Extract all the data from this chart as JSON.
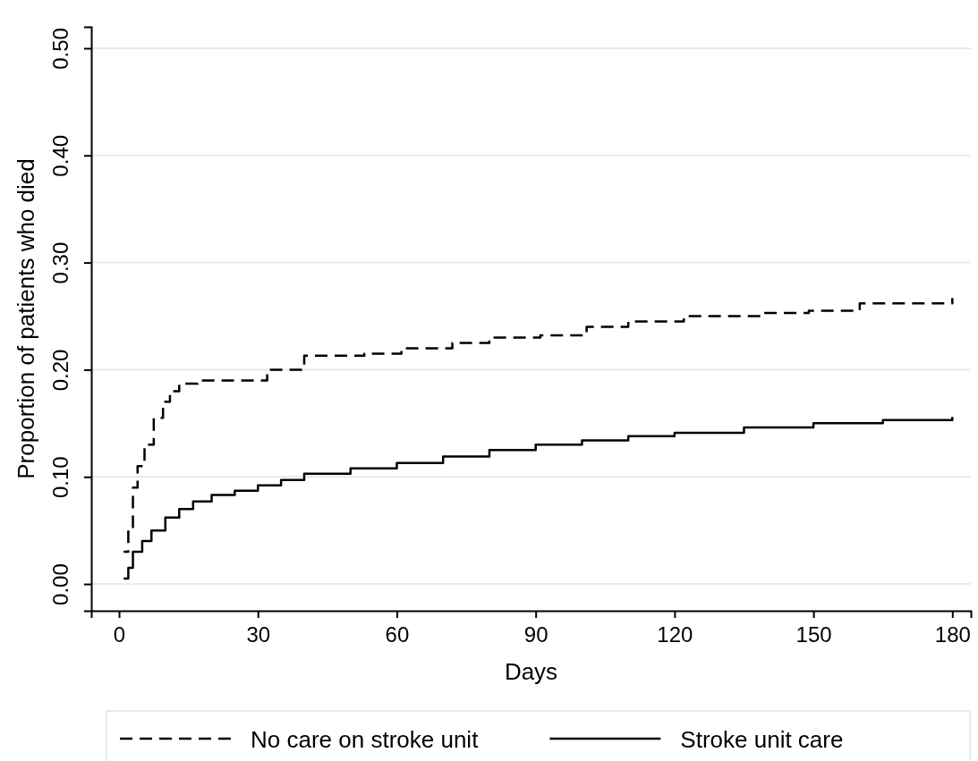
{
  "chart_data": {
    "type": "step",
    "xlabel": "Days",
    "ylabel": "Proportion of patients who died",
    "xlim": [
      -6,
      184
    ],
    "ylim": [
      -0.025,
      0.52
    ],
    "xticks": [
      0,
      30,
      60,
      90,
      120,
      150,
      180
    ],
    "yticks": [
      {
        "value": 0,
        "label": "0.00"
      },
      {
        "value": 0.1,
        "label": "0.10"
      },
      {
        "value": 0.2,
        "label": "0.20"
      },
      {
        "value": 0.3,
        "label": "0.30"
      },
      {
        "value": 0.4,
        "label": "0.40"
      },
      {
        "value": 0.5,
        "label": "0.50"
      }
    ],
    "grid": "y",
    "legend": "bottom",
    "series": [
      {
        "name": "No care on stroke unit",
        "color": "#000000",
        "line_style": "dashed",
        "x": [
          1,
          2,
          3,
          4,
          5.5,
          7.5,
          9.5,
          11,
          13,
          17,
          23,
          32,
          40,
          53,
          61,
          72,
          80,
          91,
          101,
          110,
          122,
          139,
          149,
          160,
          180
        ],
        "values": [
          0.03,
          0.05,
          0.09,
          0.11,
          0.13,
          0.155,
          0.17,
          0.18,
          0.187,
          0.19,
          0.19,
          0.2,
          0.213,
          0.215,
          0.22,
          0.225,
          0.23,
          0.232,
          0.24,
          0.245,
          0.25,
          0.253,
          0.255,
          0.262,
          0.267
        ]
      },
      {
        "name": "Stroke unit care",
        "color": "#000000",
        "line_style": "solid",
        "x": [
          1,
          2,
          3,
          5,
          7,
          10,
          13,
          16,
          20,
          25,
          30,
          35,
          40,
          50,
          60,
          70,
          80,
          90,
          100,
          110,
          120,
          135,
          150,
          165,
          180
        ],
        "values": [
          0.005,
          0.015,
          0.03,
          0.04,
          0.05,
          0.062,
          0.07,
          0.077,
          0.083,
          0.087,
          0.092,
          0.097,
          0.103,
          0.108,
          0.113,
          0.119,
          0.125,
          0.13,
          0.134,
          0.138,
          0.141,
          0.146,
          0.15,
          0.153,
          0.156
        ]
      }
    ]
  }
}
